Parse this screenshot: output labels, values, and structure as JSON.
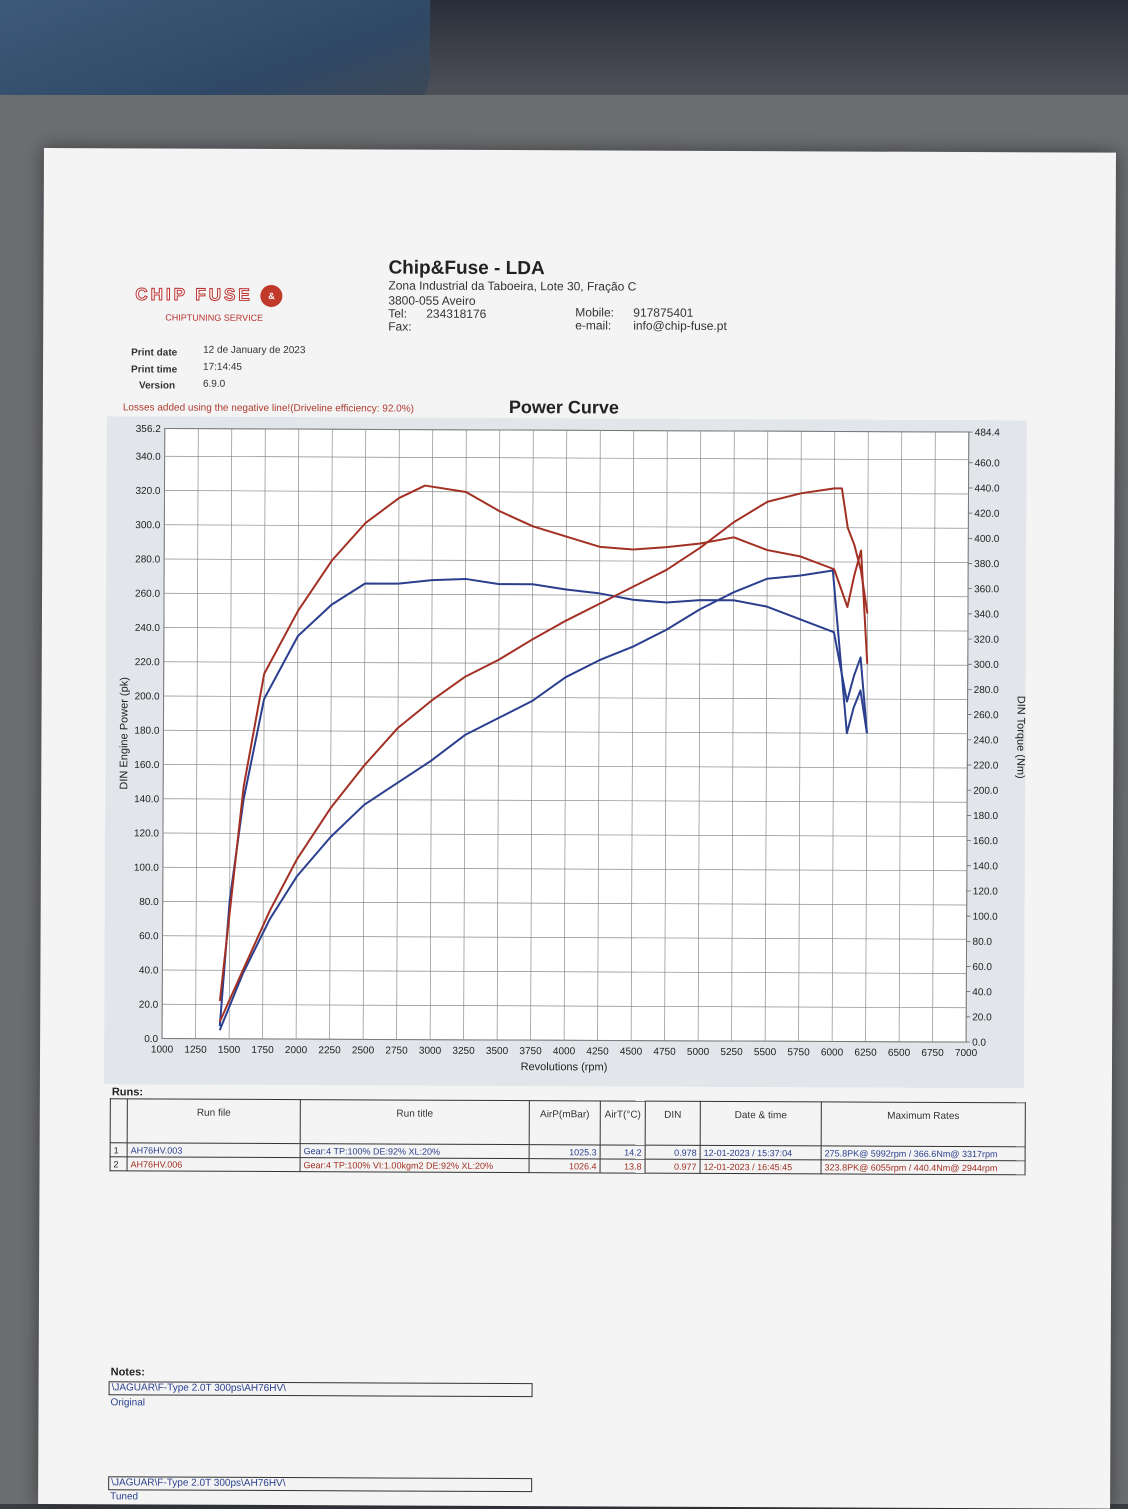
{
  "company": {
    "logo_text": "CHIP FUSE",
    "logo_mid": "&",
    "logo_sub": "CHIPTUNING SERVICE",
    "name": "Chip&Fuse - LDA",
    "address_line1": "Zona Industrial da Taboeira, Lote 30, Fração C",
    "address_line2": "3800-055 Aveiro",
    "tel_label": "Tel:",
    "tel": "234318176",
    "fax_label": "Fax:",
    "mobile_label": "Mobile:",
    "mobile": "917875401",
    "email_label": "e-mail:",
    "email": "info@chip-fuse.pt"
  },
  "print_info": {
    "date_label": "Print date",
    "date": "12 de January de 2023",
    "time_label": "Print time",
    "time": "17:14:45",
    "version_label": "Version",
    "version": "6.9.0"
  },
  "losses_note": "Losses added using the negative line!(Driveline efficiency: 92.0%)",
  "chart_data": {
    "type": "line",
    "title": "Power Curve",
    "xlabel": "Revolutions (rpm)",
    "ylabel": "DIN Engine Power (pk)",
    "y2label": "DIN Torque (Nm)",
    "xlim": [
      1000,
      7000
    ],
    "ylim": [
      0,
      356.2
    ],
    "y2lim": [
      0,
      484.4
    ],
    "x_ticks": [
      1000,
      1250,
      1500,
      1750,
      2000,
      2250,
      2500,
      2750,
      3000,
      3250,
      3500,
      3750,
      4000,
      4250,
      4500,
      4750,
      5000,
      5250,
      5500,
      5750,
      6000,
      6250,
      6500,
      6750,
      7000
    ],
    "y_ticks": [
      "0.0",
      "20.0",
      "40.0",
      "60.0",
      "80.0",
      "100.0",
      "120.0",
      "140.0",
      "160.0",
      "180.0",
      "200.0",
      "220.0",
      "240.0",
      "260.0",
      "280.0",
      "300.0",
      "320.0",
      "340.0",
      "356.2"
    ],
    "y2_ticks": [
      "0.0",
      "20.0",
      "40.0",
      "60.0",
      "80.0",
      "100.0",
      "120.0",
      "140.0",
      "160.0",
      "180.0",
      "200.0",
      "220.0",
      "240.0",
      "260.0",
      "280.0",
      "300.0",
      "320.0",
      "340.0",
      "360.0",
      "380.0",
      "400.0",
      "420.0",
      "440.0",
      "460.0",
      "484.4"
    ],
    "grid": true,
    "series": [
      {
        "axis": "power",
        "color": "#2b3f8f",
        "x": [
          1430,
          1600,
          1800,
          2000,
          2250,
          2500,
          2750,
          3000,
          3250,
          3500,
          3750,
          4000,
          4250,
          4500,
          4750,
          5000,
          5250,
          5500,
          5750,
          5990,
          6100,
          6150,
          6200,
          6250
        ],
        "y": [
          5,
          38,
          70,
          95,
          118,
          137,
          150,
          163,
          178,
          188,
          198,
          212,
          222,
          230,
          240,
          252,
          262,
          270,
          272,
          275,
          180,
          195,
          205,
          180
        ]
      },
      {
        "axis": "torque",
        "color": "#2b3f8f",
        "x": [
          1430,
          1500,
          1600,
          1750,
          2000,
          2250,
          2500,
          2750,
          3000,
          3250,
          3500,
          3750,
          4000,
          4250,
          4500,
          4750,
          5000,
          5250,
          5500,
          5750,
          6000,
          6100,
          6150,
          6200,
          6250
        ],
        "y": [
          10,
          110,
          190,
          270,
          320,
          345,
          362,
          362,
          365,
          366,
          362,
          362,
          358,
          355,
          350,
          348,
          350,
          350,
          345,
          335,
          325,
          270,
          290,
          305,
          245
        ]
      },
      {
        "axis": "power",
        "color": "#a33024",
        "x": [
          1430,
          1600,
          1800,
          2000,
          2250,
          2500,
          2750,
          3000,
          3250,
          3500,
          3750,
          4000,
          4250,
          4500,
          4750,
          5000,
          5250,
          5500,
          5750,
          6000,
          6055,
          6100,
          6150,
          6200,
          6250
        ],
        "y": [
          10,
          40,
          75,
          105,
          135,
          160,
          182,
          198,
          212,
          222,
          234,
          245,
          255,
          265,
          275,
          288,
          303,
          315,
          320,
          323,
          323,
          300,
          290,
          275,
          250
        ]
      },
      {
        "axis": "torque",
        "color": "#a33024",
        "x": [
          1430,
          1500,
          1600,
          1750,
          2000,
          2250,
          2500,
          2750,
          2944,
          3250,
          3500,
          3750,
          4000,
          4250,
          4500,
          4750,
          5000,
          5250,
          5500,
          5750,
          6000,
          6100,
          6150,
          6200,
          6250
        ],
        "y": [
          30,
          100,
          200,
          290,
          340,
          380,
          410,
          430,
          440,
          435,
          420,
          408,
          400,
          392,
          390,
          392,
          395,
          400,
          390,
          385,
          375,
          345,
          370,
          390,
          300
        ]
      }
    ]
  },
  "runs": {
    "title": "Runs:",
    "headers": [
      "",
      "Run file",
      "Run title",
      "AirP(mBar)",
      "AirT(°C)",
      "DIN",
      "Date & time",
      "Maximum Rates"
    ],
    "rows": [
      [
        "1",
        "AH76HV.003",
        "Gear:4 TP:100% DE:92% XL:20%",
        "1025.3",
        "14.2",
        "0.978",
        "12-01-2023 / 15:37:04",
        "275.8PK@ 5992rpm / 366.6Nm@ 3317rpm"
      ],
      [
        "2",
        "AH76HV.006",
        "Gear:4 TP:100% VI:1.00kgm2 DE:92% XL:20%",
        "1026.4",
        "13.8",
        "0.977",
        "12-01-2023 / 16:45:45",
        "323.8PK@ 6055rpm / 440.4Nm@ 2944rpm"
      ]
    ]
  },
  "notes": {
    "title": "Notes:",
    "note1_path": "\\JAGUAR\\F-Type 2.0T 300ps\\AH76HV\\",
    "note1_sub": "Original",
    "note2_path": "\\JAGUAR\\F-Type 2.0T 300ps\\AH76HV\\",
    "note2_sub": "Tuned"
  }
}
